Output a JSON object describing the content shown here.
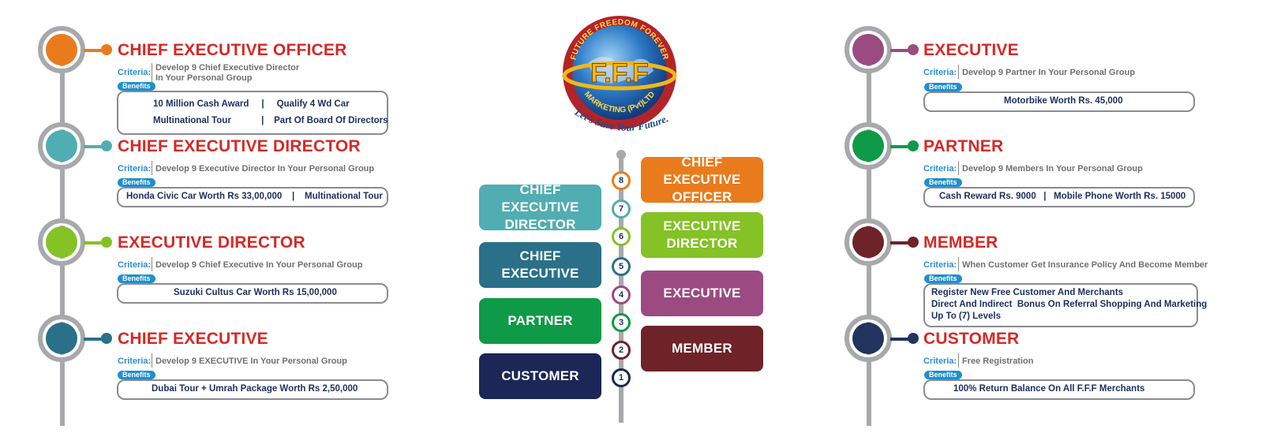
{
  "logo": {
    "arc_text": "FUTURE FREEDOM FOREVER",
    "letters": "F.F.F",
    "bottom_text": "MARKETING (Pvt)LTD",
    "tagline": "Let's Save Your Future."
  },
  "colors": {
    "title_red": "#d42a27",
    "criteria_blue": "#2a8ed0",
    "benefits_blue": "#1f8fce",
    "navy_text": "#1b2f5e",
    "line_gray": "#a7a9ac"
  },
  "left": [
    {
      "title": "CHIEF EXECUTIVE OFFICER",
      "criteria_label": "Criteria:",
      "criteria_lines": [
        "Develop 9 Chief Executive Director",
        "In Your Personal Group"
      ],
      "benefits_label": "Benefits",
      "benefit_lines": [
        "10 Million Cash Award     |     Qualify 4 Wd Car",
        "Multinational Tour            |    Part Of Board Of Directors"
      ],
      "color": "#ea7b1c"
    },
    {
      "title": "CHIEF EXECUTIVE DIRECTOR",
      "criteria_label": "Criteria:",
      "criteria_lines": [
        "Develop 9 Executive Director In Your Personal Group"
      ],
      "benefits_label": "Benefits",
      "benefit_lines": [
        "Honda Civic Car Worth Rs 33,00,000    |    Multinational Tour"
      ],
      "color": "#50adb2"
    },
    {
      "title": "EXECUTIVE DIRECTOR",
      "criteria_label": "Criteria:",
      "criteria_lines": [
        "Develop 9 Chief Executive In Your Personal Group"
      ],
      "benefits_label": "Benefits",
      "benefit_lines": [
        "Suzuki Cultus Car Worth Rs 15,00,000"
      ],
      "color": "#84c225"
    },
    {
      "title": "CHIEF EXECUTIVE",
      "criteria_label": "Criteria:",
      "criteria_lines": [
        "Develop 9 EXECUTIVE In Your Personal Group"
      ],
      "benefits_label": "Benefits",
      "benefit_lines": [
        "Dubai Tour + Umrah Package Worth Rs 2,50,000"
      ],
      "color": "#2a7089"
    }
  ],
  "right": [
    {
      "title": "EXECUTIVE",
      "criteria_label": "Criteria:",
      "criteria_lines": [
        "Develop 9 Partner In Your Personal Group"
      ],
      "benefits_label": "Benefits",
      "benefit_lines": [
        "Motorbike Worth Rs. 45,000"
      ],
      "color": "#9b4a82"
    },
    {
      "title": "PARTNER",
      "criteria_label": "Criteria:",
      "criteria_lines": [
        "Develop 9 Members In Your Personal Group"
      ],
      "benefits_label": "Benefits",
      "benefit_lines": [
        "Cash Reward Rs. 9000   |   Mobile Phone Worth Rs. 15000"
      ],
      "color": "#0e9a46"
    },
    {
      "title": "MEMBER",
      "criteria_label": "Criteria:",
      "criteria_lines": [
        "When Customer Get Insurance Policy And Become Member"
      ],
      "benefits_label": "Benefits",
      "benefit_lines": [
        "Register New Free Customer And Merchants",
        "Direct And Indirect  Bonus On Referral Shopping And Marketing",
        "Up To (7) Levels"
      ],
      "color": "#6e2328"
    },
    {
      "title": "CUSTOMER",
      "criteria_label": "Criteria:",
      "criteria_lines": [
        "Free Registration"
      ],
      "benefits_label": "Benefits",
      "benefit_lines": [
        "100% Return Balance On All F.F.F Merchants"
      ],
      "color": "#22335e"
    }
  ],
  "ladder": [
    {
      "num": "8",
      "label_lines": [
        "CHIEF EXECUTIVE",
        "OFFICER"
      ],
      "color": "#ea7b1c",
      "side": "right"
    },
    {
      "num": "7",
      "label_lines": [
        "CHIEF EXECUTIVE",
        "DIRECTOR"
      ],
      "color": "#50adb2",
      "side": "left"
    },
    {
      "num": "6",
      "label_lines": [
        "EXECUTIVE",
        "DIRECTOR"
      ],
      "color": "#84c225",
      "side": "right"
    },
    {
      "num": "5",
      "label_lines": [
        "CHIEF",
        "EXECUTIVE"
      ],
      "color": "#2a7089",
      "side": "left"
    },
    {
      "num": "4",
      "label_lines": [
        "EXECUTIVE"
      ],
      "color": "#9b4a82",
      "side": "right"
    },
    {
      "num": "3",
      "label_lines": [
        "PARTNER"
      ],
      "color": "#0e9a46",
      "side": "left"
    },
    {
      "num": "2",
      "label_lines": [
        "MEMBER"
      ],
      "color": "#6e2328",
      "side": "right"
    },
    {
      "num": "1",
      "label_lines": [
        "CUSTOMER"
      ],
      "color": "#1c2757",
      "side": "left"
    }
  ]
}
